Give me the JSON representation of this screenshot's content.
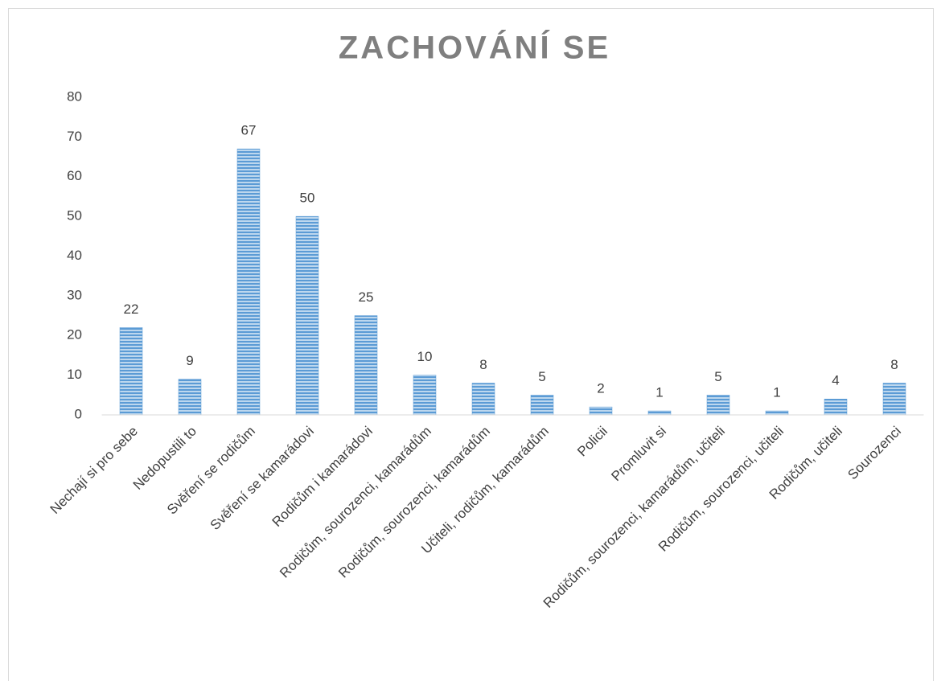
{
  "chart_data": {
    "type": "bar",
    "title": "ZACHOVÁNÍ SE",
    "categories": [
      "Nechají si pro sebe",
      "Nedopustili to",
      "Svěření se rodičům",
      "Svěření se kamarádovi",
      "Rodičům i kamarádovi",
      "Rodičům, sourozenci, kamarádům",
      "Rodičům, sourozenci, kamarádům",
      "Učiteli, rodičům, kamarádům",
      "Policii",
      "Promluvit si",
      "Rodičům, sourozenci, kamarádům, učiteli",
      "Rodičům, sourozenci, učiteli",
      "Rodičům, učiteli",
      "Sourozenci"
    ],
    "values": [
      22,
      9,
      67,
      50,
      25,
      10,
      8,
      5,
      2,
      1,
      5,
      1,
      4,
      8
    ],
    "color": "#5b9bd5",
    "ylim": [
      0,
      80
    ],
    "yticks": [
      0,
      10,
      20,
      30,
      40,
      50,
      60,
      70,
      80
    ],
    "grid": false
  }
}
